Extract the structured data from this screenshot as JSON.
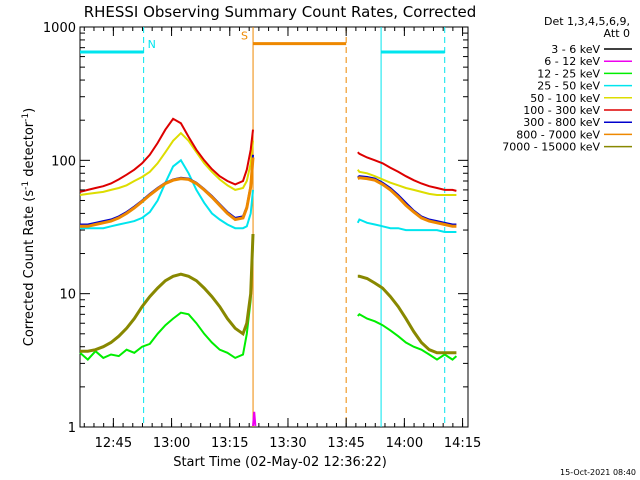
{
  "chart_data": {
    "type": "line",
    "title": "RHESSI Observing Summary Count Rates, Corrected",
    "xlabel": "Start Time (02-May-02 12:36:22)",
    "ylabel_parts": [
      "Corrected Count Rate (s",
      "-1",
      " detector",
      "-1",
      ")"
    ],
    "y_scale": "log",
    "ylim": [
      1,
      1000
    ],
    "xlim": [
      0,
      100
    ],
    "x_unit": "minutes after 12:36:22",
    "y_ticks": [
      {
        "value": 1,
        "label": "1"
      },
      {
        "value": 10,
        "label": "10"
      },
      {
        "value": 100,
        "label": "100"
      },
      {
        "value": 1000,
        "label": "1000"
      }
    ],
    "x_ticks": [
      {
        "value": 8.6,
        "label": "12:45"
      },
      {
        "value": 23.6,
        "label": "13:00"
      },
      {
        "value": 38.6,
        "label": "13:15"
      },
      {
        "value": 53.6,
        "label": "13:30"
      },
      {
        "value": 68.6,
        "label": "13:45"
      },
      {
        "value": 83.6,
        "label": "14:00"
      },
      {
        "value": 98.6,
        "label": "14:15"
      }
    ],
    "legend_header": [
      "Det 1,3,4,5,6,9,",
      "Att 0"
    ],
    "footer_stamp": "15-Oct-2021 08:40",
    "data_gap": [
      44.6,
      71.6
    ],
    "flags": [
      {
        "label": "N",
        "color": "#00e5ee",
        "y": 650,
        "segments": [
          [
            0,
            16.4
          ],
          [
            77.6,
            94.0
          ]
        ],
        "dashed": [
          16.4,
          94.0
        ],
        "solid": [
          77.6
        ]
      },
      {
        "label": "S",
        "color": "#ee8800",
        "y": 750,
        "segments": [
          [
            44.6,
            68.6
          ]
        ],
        "solid": [
          44.6
        ],
        "dashed": [
          68.6
        ]
      }
    ],
    "series": [
      {
        "name": "3 - 6 keV",
        "color": "#000000",
        "x": [],
        "y": []
      },
      {
        "name": "6 - 12 keV",
        "color": "#ee00ee",
        "x": [
          44.6,
          44.9,
          45.2
        ],
        "y": [
          1.02,
          1.3,
          1.02
        ]
      },
      {
        "name": "12 - 25 keV",
        "color": "#00ee00",
        "x": [
          0,
          2,
          4,
          6,
          8,
          10,
          12,
          14,
          16,
          18,
          20,
          22,
          24,
          26,
          28,
          30,
          32,
          34,
          36,
          38,
          40,
          42,
          43,
          44,
          44.6,
          71.6,
          72,
          74,
          76,
          78,
          80,
          82,
          84,
          86,
          88,
          90,
          92,
          94,
          96,
          97
        ],
        "y": [
          3.6,
          3.2,
          3.7,
          3.3,
          3.5,
          3.4,
          3.8,
          3.6,
          4.0,
          4.2,
          5.0,
          5.8,
          6.5,
          7.2,
          7.0,
          6.0,
          5.0,
          4.3,
          3.8,
          3.6,
          3.3,
          3.5,
          5,
          9,
          25,
          6.8,
          7.0,
          6.5,
          6.2,
          5.8,
          5.3,
          4.8,
          4.3,
          4.0,
          3.8,
          3.5,
          3.2,
          3.5,
          3.2,
          3.4
        ]
      },
      {
        "name": "25 - 50 keV",
        "color": "#00e5ee",
        "x": [
          0,
          2,
          4,
          6,
          8,
          10,
          12,
          14,
          16,
          18,
          20,
          22,
          24,
          26,
          28,
          30,
          32,
          34,
          36,
          38,
          40,
          42,
          43,
          44,
          44.6,
          71.6,
          72,
          74,
          76,
          78,
          80,
          82,
          84,
          86,
          88,
          90,
          92,
          94,
          96,
          97
        ],
        "y": [
          31,
          31,
          31,
          31,
          32,
          33,
          34,
          35,
          37,
          41,
          50,
          68,
          90,
          100,
          80,
          60,
          48,
          40,
          36,
          33,
          31,
          31,
          32,
          40,
          60,
          34,
          36,
          34,
          33,
          32,
          31,
          31,
          30,
          30,
          30,
          30,
          30,
          29,
          29,
          29
        ]
      },
      {
        "name": "50 - 100 keV",
        "color": "#dddd00",
        "x": [
          0,
          2,
          4,
          6,
          8,
          10,
          12,
          14,
          16,
          18,
          20,
          22,
          24,
          26,
          28,
          30,
          32,
          34,
          36,
          38,
          40,
          42,
          43,
          44,
          44.6,
          71.6,
          72,
          74,
          76,
          78,
          80,
          82,
          84,
          86,
          88,
          90,
          92,
          94,
          96,
          97
        ],
        "y": [
          55,
          56,
          57,
          58,
          60,
          62,
          65,
          70,
          75,
          82,
          95,
          115,
          140,
          160,
          140,
          115,
          95,
          82,
          72,
          65,
          60,
          62,
          70,
          95,
          140,
          85,
          82,
          80,
          76,
          72,
          68,
          65,
          62,
          60,
          58,
          56,
          55,
          55,
          55,
          55
        ]
      },
      {
        "name": "100 - 300 keV",
        "color": "#dd0000",
        "x": [
          0,
          2,
          4,
          6,
          8,
          10,
          12,
          14,
          16,
          18,
          20,
          22,
          24,
          26,
          28,
          30,
          32,
          34,
          36,
          38,
          40,
          42,
          43,
          44,
          44.6,
          71.6,
          72,
          74,
          76,
          78,
          80,
          82,
          84,
          86,
          88,
          90,
          92,
          94,
          96,
          97
        ],
        "y": [
          58,
          60,
          62,
          64,
          67,
          72,
          78,
          85,
          95,
          110,
          135,
          170,
          205,
          190,
          150,
          120,
          100,
          86,
          76,
          70,
          66,
          70,
          85,
          120,
          170,
          115,
          112,
          105,
          100,
          95,
          88,
          82,
          76,
          71,
          67,
          64,
          62,
          60,
          60,
          59
        ]
      },
      {
        "name": "300 - 800 keV",
        "color": "#0000cc",
        "x": [
          0,
          2,
          4,
          6,
          8,
          10,
          12,
          14,
          16,
          18,
          20,
          22,
          24,
          26,
          28,
          30,
          32,
          34,
          36,
          38,
          40,
          42,
          43,
          44,
          44.6,
          71.6,
          72,
          74,
          76,
          78,
          80,
          82,
          84,
          86,
          88,
          90,
          92,
          94,
          96,
          97
        ],
        "y": [
          33,
          33,
          34,
          35,
          36,
          38,
          41,
          45,
          50,
          56,
          62,
          68,
          72,
          74,
          73,
          68,
          61,
          54,
          47,
          41,
          37,
          38,
          45,
          65,
          110,
          75,
          76,
          75,
          73,
          68,
          62,
          55,
          48,
          42,
          38,
          36,
          35,
          34,
          33,
          33
        ]
      },
      {
        "name": "800 - 7000 keV",
        "color": "#ee8800",
        "x": [
          0,
          2,
          4,
          6,
          8,
          10,
          12,
          14,
          16,
          18,
          20,
          22,
          24,
          26,
          28,
          30,
          32,
          34,
          36,
          38,
          40,
          42,
          43,
          44,
          44.6,
          71.6,
          72,
          74,
          76,
          78,
          80,
          82,
          84,
          86,
          88,
          90,
          92,
          94,
          96,
          97
        ],
        "y": [
          32,
          32,
          33,
          34,
          35,
          37,
          40,
          44,
          49,
          55,
          61,
          67,
          71,
          73,
          72,
          67,
          60,
          53,
          46,
          40,
          36,
          37,
          44,
          63,
          105,
          73,
          74,
          73,
          71,
          66,
          60,
          53,
          46,
          41,
          37,
          35,
          34,
          33,
          32,
          32
        ]
      },
      {
        "name": "7000 - 15000 keV",
        "color": "#888800",
        "x": [
          0,
          2,
          4,
          6,
          8,
          10,
          12,
          14,
          16,
          18,
          20,
          22,
          24,
          26,
          28,
          30,
          32,
          34,
          36,
          38,
          40,
          42,
          43,
          44,
          44.6,
          71.6,
          72,
          74,
          76,
          78,
          80,
          82,
          84,
          86,
          88,
          90,
          92,
          94,
          96,
          97
        ],
        "y": [
          3.7,
          3.7,
          3.8,
          4.0,
          4.3,
          4.8,
          5.5,
          6.5,
          8.0,
          9.5,
          11,
          12.5,
          13.5,
          14,
          13.5,
          12.5,
          11,
          9.5,
          8,
          6.5,
          5.5,
          5,
          6,
          10,
          28,
          13.5,
          13.5,
          13,
          12,
          11,
          9.5,
          8,
          6.5,
          5.2,
          4.3,
          3.8,
          3.6,
          3.6,
          3.6,
          3.6
        ]
      }
    ]
  }
}
